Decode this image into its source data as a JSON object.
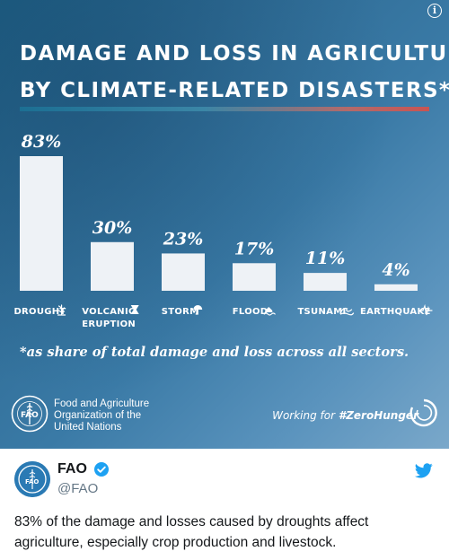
{
  "card": {
    "title_lines": [
      "DAMAGE AND LOSS IN AGRICULTURE",
      "BY CLIMATE-RELATED DISASTERS*"
    ],
    "footnote": "*as share of total damage and loss across all sectors.",
    "org_name_lines": [
      "Food and Agriculture",
      "Organization of the",
      "United Nations"
    ],
    "fao_logo_text": "FAO",
    "fao_logo_motto": "FIAT PANIS",
    "campaign_text": "Working for ",
    "campaign_hashtag": "#ZeroHunger",
    "colors": {
      "bar": "#eef2f6",
      "rule_start": "#1c6f93",
      "rule_end": "#c85452"
    }
  },
  "chart_data": {
    "type": "bar",
    "categories": [
      "DROUGHT",
      "VOLCANIC ERUPTION",
      "STORM",
      "FLOOD",
      "TSUNAMI",
      "EARTHQUAKE"
    ],
    "category_label_lines": [
      [
        "DROUGHT"
      ],
      [
        "VOLCANIC",
        "ERUPTION"
      ],
      [
        "STORM"
      ],
      [
        "FLOOD"
      ],
      [
        "TSUNAMI"
      ],
      [
        "EARTHQUAKE"
      ]
    ],
    "category_icons": [
      "drought-icon",
      "volcano-icon",
      "storm-icon",
      "flood-icon",
      "tsunami-icon",
      "earthquake-icon"
    ],
    "values": [
      83,
      30,
      23,
      17,
      11,
      4
    ],
    "data_labels": [
      "83%",
      "30%",
      "23%",
      "17%",
      "11%",
      "4%"
    ],
    "ylim": [
      0,
      83
    ],
    "grid": false,
    "legend": "none"
  },
  "tweet": {
    "author": "FAO",
    "handle": "@FAO",
    "avatar_text": "FAO",
    "text": "83% of the damage and losses caused by droughts affect agriculture, especially crop production and livestock."
  }
}
